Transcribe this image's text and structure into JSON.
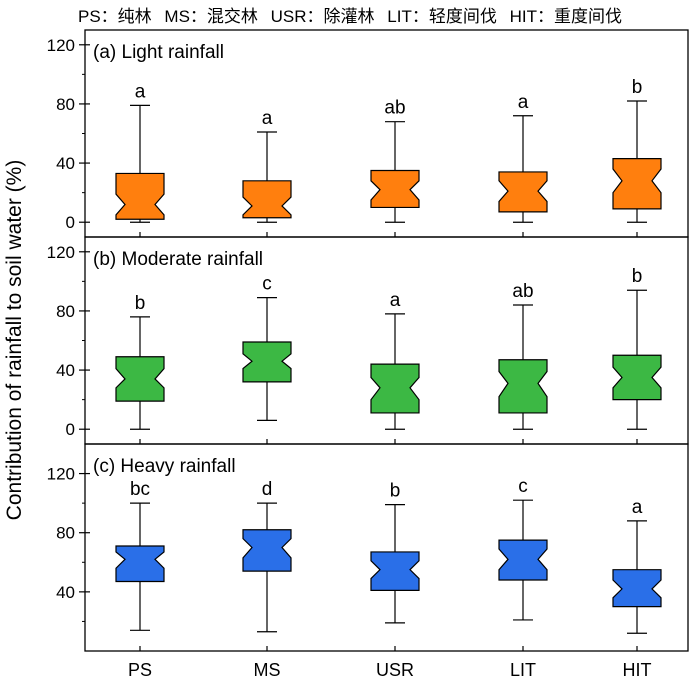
{
  "legend_note": [
    "PS：纯林",
    "MS：混交林",
    "USR：除灌林",
    "LIT：轻度间伐",
    "HIT：重度间伐"
  ],
  "ylabel": "Contribution of rainfall to soil water (%)",
  "colors": {
    "light": "#FF7F0E",
    "moderate": "#3CB844",
    "heavy": "#2A6FE8"
  },
  "chart_data": [
    {
      "type": "box",
      "panel_label": "(a) Light rainfall",
      "categories": [
        "PS",
        "MS",
        "USR",
        "LIT",
        "HIT"
      ],
      "ylim": [
        -10,
        130
      ],
      "yticks": [
        0,
        40,
        80,
        120
      ],
      "color_key": "light",
      "boxes": [
        {
          "min": 0,
          "q1": 2,
          "median": 12,
          "q3": 33,
          "max": 79,
          "notch_low": 5,
          "notch_high": 19,
          "letter": "a"
        },
        {
          "min": 0,
          "q1": 3,
          "median": 11,
          "q3": 28,
          "max": 61,
          "notch_low": 5,
          "notch_high": 17,
          "letter": "a"
        },
        {
          "min": 0,
          "q1": 10,
          "median": 22,
          "q3": 35,
          "max": 68,
          "notch_low": 15,
          "notch_high": 28,
          "letter": "ab"
        },
        {
          "min": 0,
          "q1": 7,
          "median": 21,
          "q3": 34,
          "max": 72,
          "notch_low": 14,
          "notch_high": 28,
          "letter": "a"
        },
        {
          "min": 0,
          "q1": 9,
          "median": 28,
          "q3": 43,
          "max": 82,
          "notch_low": 20,
          "notch_high": 36,
          "letter": "b"
        }
      ]
    },
    {
      "type": "box",
      "panel_label": "(b) Moderate rainfall",
      "categories": [
        "PS",
        "MS",
        "USR",
        "LIT",
        "HIT"
      ],
      "ylim": [
        -10,
        130
      ],
      "yticks": [
        0,
        40,
        80,
        120
      ],
      "color_key": "moderate",
      "boxes": [
        {
          "min": 0,
          "q1": 19,
          "median": 34,
          "q3": 49,
          "max": 76,
          "notch_low": 28,
          "notch_high": 41,
          "letter": "b"
        },
        {
          "min": 6,
          "q1": 32,
          "median": 46,
          "q3": 59,
          "max": 89,
          "notch_low": 41,
          "notch_high": 51,
          "letter": "c"
        },
        {
          "min": 0,
          "q1": 11,
          "median": 28,
          "q3": 44,
          "max": 78,
          "notch_low": 20,
          "notch_high": 35,
          "letter": "a"
        },
        {
          "min": 0,
          "q1": 11,
          "median": 31,
          "q3": 47,
          "max": 84,
          "notch_low": 22,
          "notch_high": 39,
          "letter": "ab"
        },
        {
          "min": 0,
          "q1": 20,
          "median": 35,
          "q3": 50,
          "max": 94,
          "notch_low": 28,
          "notch_high": 42,
          "letter": "b"
        }
      ]
    },
    {
      "type": "box",
      "panel_label": "(c) Heavy rainfall",
      "categories": [
        "PS",
        "MS",
        "USR",
        "LIT",
        "HIT"
      ],
      "ylim": [
        0,
        140
      ],
      "yticks": [
        40,
        80,
        120
      ],
      "color_key": "heavy",
      "boxes": [
        {
          "min": 14,
          "q1": 47,
          "median": 62,
          "q3": 71,
          "max": 100,
          "notch_low": 56,
          "notch_high": 67,
          "letter": "bc"
        },
        {
          "min": 13,
          "q1": 54,
          "median": 70,
          "q3": 82,
          "max": 100,
          "notch_low": 63,
          "notch_high": 76,
          "letter": "d"
        },
        {
          "min": 19,
          "q1": 41,
          "median": 55,
          "q3": 67,
          "max": 99,
          "notch_low": 49,
          "notch_high": 61,
          "letter": "b"
        },
        {
          "min": 21,
          "q1": 48,
          "median": 62,
          "q3": 75,
          "max": 102,
          "notch_low": 55,
          "notch_high": 69,
          "letter": "c"
        },
        {
          "min": 12,
          "q1": 30,
          "median": 42,
          "q3": 55,
          "max": 88,
          "notch_low": 36,
          "notch_high": 48,
          "letter": "a"
        }
      ]
    }
  ]
}
